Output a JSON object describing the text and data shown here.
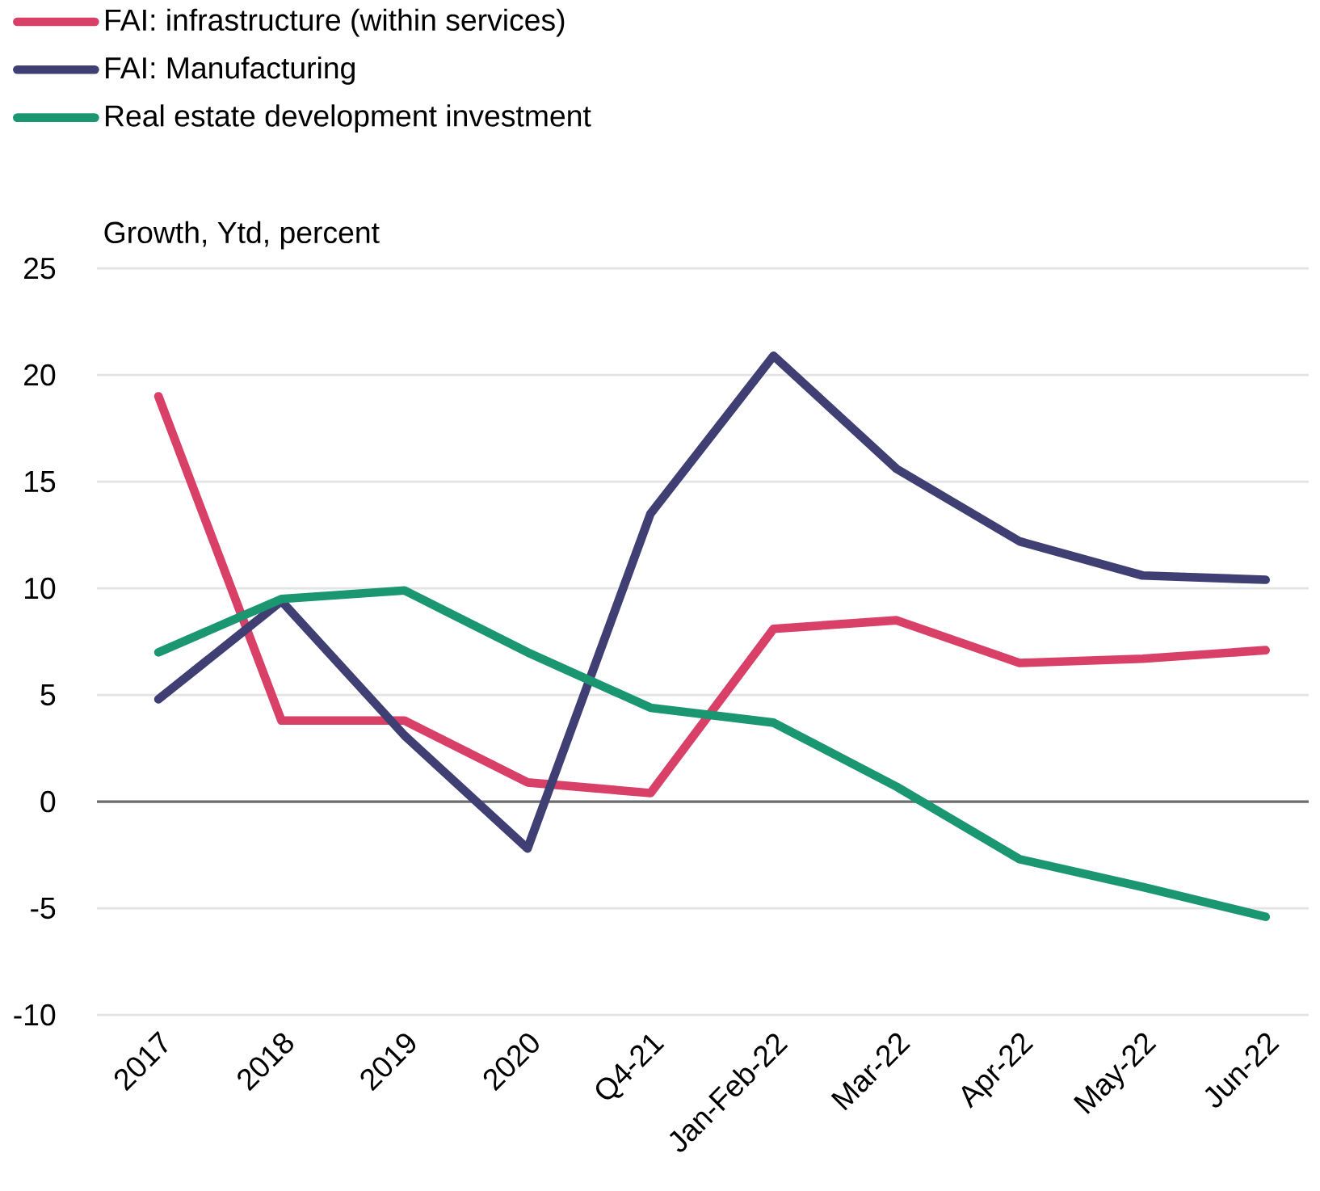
{
  "chart_data": {
    "type": "line",
    "ylabel": "Growth, Ytd, percent",
    "categories": [
      "2017",
      "2018",
      "2019",
      "2020",
      "Q4-21",
      "Jan-Feb-22",
      "Mar-22",
      "Apr-22",
      "May-22",
      "Jun-22"
    ],
    "series": [
      {
        "name": "FAI: infrastructure (within services)",
        "color": "#d94068",
        "values": [
          19.0,
          3.8,
          3.8,
          0.9,
          0.4,
          8.1,
          8.5,
          6.5,
          6.7,
          7.1
        ]
      },
      {
        "name": "FAI: Manufacturing",
        "color": "#3f3f74",
        "values": [
          4.8,
          9.4,
          3.1,
          -2.2,
          13.5,
          20.9,
          15.6,
          12.2,
          10.6,
          10.4
        ]
      },
      {
        "name": "Real estate development investment",
        "color": "#1a9670",
        "values": [
          7.0,
          9.5,
          9.9,
          7.0,
          4.4,
          3.7,
          0.7,
          -2.7,
          -4.0,
          -5.4
        ]
      }
    ],
    "ylim": [
      -10,
      25
    ],
    "yticks": [
      -10,
      -5,
      0,
      5,
      10,
      15,
      20,
      25
    ],
    "ref_lines": [
      {
        "axis": "y",
        "value": 0,
        "color": "#6d6e71"
      }
    ],
    "grid": "y",
    "legend": "top left",
    "marker": "none",
    "line_style": "solid"
  }
}
